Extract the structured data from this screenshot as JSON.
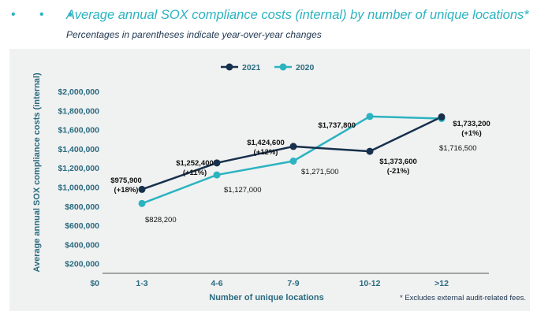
{
  "header": {
    "dots": "• • •",
    "title": "Average annual SOX compliance costs (internal) by number of unique locations*",
    "subtitle": "Percentages in parentheses indicate year-over-year changes"
  },
  "footnote": "* Excludes external audit-related fees.",
  "colors": {
    "s2021": "#16304d",
    "s2020": "#2bb3c0",
    "text": "#1d3550",
    "axis": "#2a6b80"
  },
  "chart_data": {
    "type": "line",
    "title": "Average annual SOX compliance costs (internal) by number of unique locations*",
    "xlabel": "Number of unique locations",
    "ylabel": "Average annual SOX compliance costs (internal)",
    "categories": [
      "1-3",
      "4-6",
      "7-9",
      "10-12",
      ">12"
    ],
    "ylim": [
      0,
      2000000
    ],
    "yticks": [
      0,
      200000,
      400000,
      600000,
      800000,
      1000000,
      1200000,
      1400000,
      1600000,
      1800000,
      2000000
    ],
    "ytick_labels": [
      "$0",
      "$200,000",
      "$400,000",
      "$600,000",
      "$800,000",
      "$1,000,000",
      "$1,200,000",
      "$1,400,000",
      "$1,600,000",
      "$1,800,000",
      "$2,000,000"
    ],
    "legend_position": "top-center",
    "series": [
      {
        "name": "2021",
        "values": [
          975900,
          1252400,
          1424600,
          1373600,
          1733200
        ],
        "labels": [
          "$975,900",
          "$1,252,400",
          "$1,424,600",
          "$1,373,600",
          "$1,733,200"
        ],
        "changes": [
          "(+18%)",
          "(+11%)",
          "(+12%)",
          "(-21%)",
          "(+1%)"
        ]
      },
      {
        "name": "2020",
        "values": [
          828200,
          1127000,
          1271500,
          1737800,
          1716500
        ],
        "labels": [
          "$828,200",
          "$1,127,000",
          "$1,271,500",
          "$1,737,800",
          "$1,716,500"
        ]
      }
    ]
  }
}
